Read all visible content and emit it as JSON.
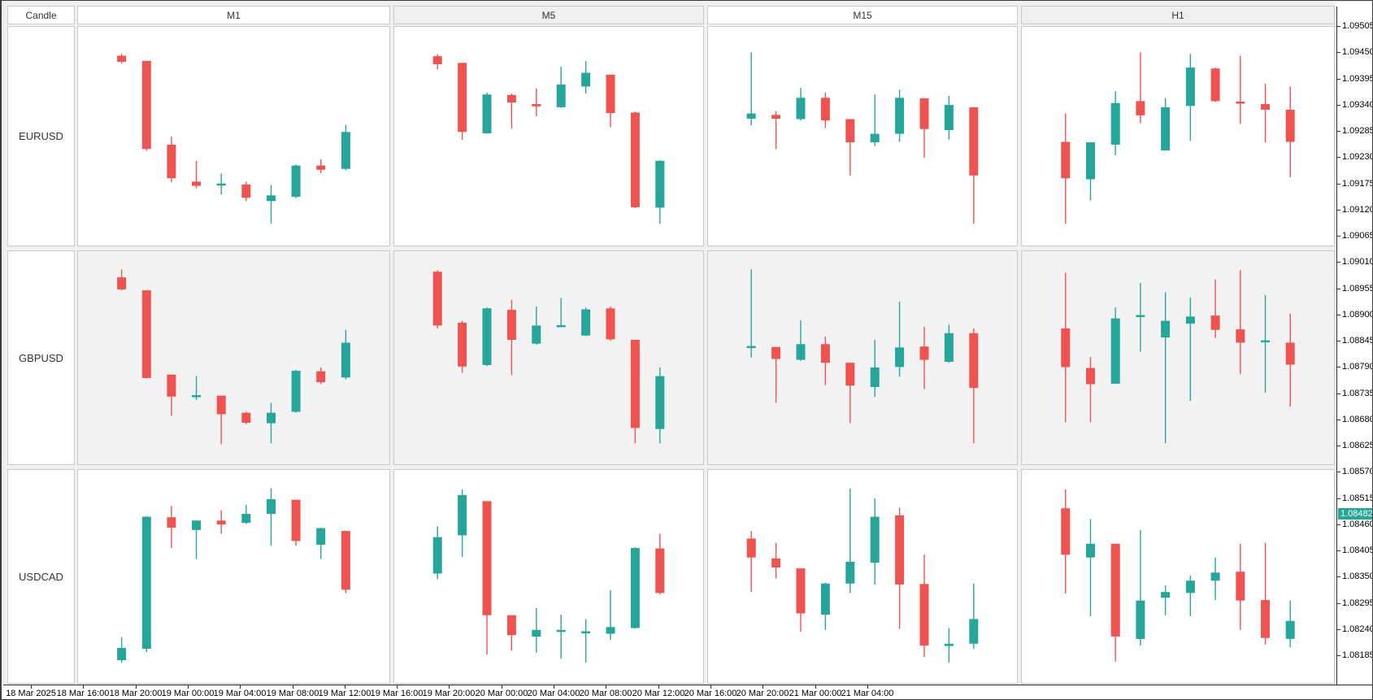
{
  "header": {
    "candle_label": "Candle",
    "timeframes": [
      "M1",
      "M5",
      "M15",
      "H1"
    ]
  },
  "rows": [
    "EURUSD",
    "GBPUSD",
    "USDCAD"
  ],
  "colors": {
    "up": "#26a69a",
    "down": "#ef5350",
    "row_alt_bg": "#f2f2f2",
    "panel_bg": "#ffffff",
    "border": "#c9c9c9",
    "axis": "#2b2b2b",
    "badge_bg": "#26a69a",
    "badge_text": "#ffffff"
  },
  "price_axis": {
    "current_price": "1.08482",
    "labels": [
      "1.09505",
      "1.09450",
      "1.09395",
      "1.09340",
      "1.09285",
      "1.09230",
      "1.09175",
      "1.09120",
      "1.09065",
      "1.09010",
      "1.08955",
      "1.08900",
      "1.08845",
      "1.08790",
      "1.08735",
      "1.08680",
      "1.08625",
      "1.08570",
      "1.08515",
      "1.08460",
      "1.08405",
      "1.08350",
      "1.08295",
      "1.08240",
      "1.08185"
    ]
  },
  "time_axis": {
    "labels": [
      "18 Mar 2025",
      "18 Mar 16:00",
      "18 Mar 20:00",
      "19 Mar 00:00",
      "19 Mar 04:00",
      "19 Mar 08:00",
      "19 Mar 12:00",
      "19 Mar 16:00",
      "19 Mar 20:00",
      "20 Mar 00:00",
      "20 Mar 04:00",
      "20 Mar 08:00",
      "20 Mar 12:00",
      "20 Mar 16:00",
      "20 Mar 20:00",
      "21 Mar 00:00",
      "21 Mar 04:00"
    ]
  },
  "chart_data": [
    {
      "type": "candlestick",
      "symbol": "EURUSD",
      "timeframe": "M1",
      "price_range": {
        "max": 1.09505,
        "min": 1.09043
      },
      "candles": [
        {
          "o": 1.09444,
          "h": 1.09448,
          "l": 1.09427,
          "c": 1.09431
        },
        {
          "o": 1.09433,
          "h": 1.09433,
          "l": 1.09243,
          "c": 1.09247
        },
        {
          "o": 1.09256,
          "h": 1.09273,
          "l": 1.09177,
          "c": 1.09185
        },
        {
          "o": 1.09178,
          "h": 1.09222,
          "l": 1.09164,
          "c": 1.09169
        },
        {
          "o": 1.09172,
          "h": 1.09195,
          "l": 1.09151,
          "c": 1.09174
        },
        {
          "o": 1.09172,
          "h": 1.09178,
          "l": 1.09137,
          "c": 1.09144
        },
        {
          "o": 1.09137,
          "h": 1.09171,
          "l": 1.09089,
          "c": 1.09149
        },
        {
          "o": 1.09146,
          "h": 1.09214,
          "l": 1.09143,
          "c": 1.09212
        },
        {
          "o": 1.09212,
          "h": 1.09225,
          "l": 1.09196,
          "c": 1.09203
        },
        {
          "o": 1.09205,
          "h": 1.09298,
          "l": 1.09202,
          "c": 1.09283
        }
      ]
    },
    {
      "type": "candlestick",
      "symbol": "EURUSD",
      "timeframe": "M5",
      "price_range": {
        "max": 1.09505,
        "min": 1.09043
      },
      "candles": [
        {
          "o": 1.09443,
          "h": 1.09447,
          "l": 1.09415,
          "c": 1.09426
        },
        {
          "o": 1.09429,
          "h": 1.09429,
          "l": 1.09266,
          "c": 1.09283
        },
        {
          "o": 1.0928,
          "h": 1.09366,
          "l": 1.09279,
          "c": 1.09362
        },
        {
          "o": 1.09361,
          "h": 1.09364,
          "l": 1.0929,
          "c": 1.09345
        },
        {
          "o": 1.09342,
          "h": 1.09375,
          "l": 1.09316,
          "c": 1.09337
        },
        {
          "o": 1.09335,
          "h": 1.09421,
          "l": 1.09334,
          "c": 1.09383
        },
        {
          "o": 1.09379,
          "h": 1.09433,
          "l": 1.09364,
          "c": 1.09408
        },
        {
          "o": 1.09404,
          "h": 1.09404,
          "l": 1.09293,
          "c": 1.09323
        },
        {
          "o": 1.09324,
          "h": 1.09326,
          "l": 1.09122,
          "c": 1.09124
        },
        {
          "o": 1.09123,
          "h": 1.09223,
          "l": 1.09089,
          "c": 1.09222
        }
      ]
    },
    {
      "type": "candlestick",
      "symbol": "EURUSD",
      "timeframe": "M15",
      "price_range": {
        "max": 1.09505,
        "min": 1.09043
      },
      "candles": [
        {
          "o": 1.09311,
          "h": 1.09451,
          "l": 1.09297,
          "c": 1.09322
        },
        {
          "o": 1.09319,
          "h": 1.09327,
          "l": 1.09247,
          "c": 1.09311
        },
        {
          "o": 1.0931,
          "h": 1.09376,
          "l": 1.09307,
          "c": 1.09355
        },
        {
          "o": 1.09355,
          "h": 1.09366,
          "l": 1.09291,
          "c": 1.09307
        },
        {
          "o": 1.0931,
          "h": 1.0931,
          "l": 1.09191,
          "c": 1.09261
        },
        {
          "o": 1.09261,
          "h": 1.09362,
          "l": 1.09253,
          "c": 1.09279
        },
        {
          "o": 1.09279,
          "h": 1.09372,
          "l": 1.09262,
          "c": 1.09355
        },
        {
          "o": 1.09354,
          "h": 1.09354,
          "l": 1.09228,
          "c": 1.09289
        },
        {
          "o": 1.09287,
          "h": 1.09359,
          "l": 1.09267,
          "c": 1.0934
        },
        {
          "o": 1.09335,
          "h": 1.09335,
          "l": 1.09089,
          "c": 1.09191
        }
      ]
    },
    {
      "type": "candlestick",
      "symbol": "EURUSD",
      "timeframe": "H1",
      "price_range": {
        "max": 1.09505,
        "min": 1.09043
      },
      "candles": [
        {
          "o": 1.09262,
          "h": 1.09322,
          "l": 1.09089,
          "c": 1.09185
        },
        {
          "o": 1.09183,
          "h": 1.09261,
          "l": 1.09138,
          "c": 1.09261
        },
        {
          "o": 1.09256,
          "h": 1.09369,
          "l": 1.09234,
          "c": 1.09344
        },
        {
          "o": 1.09348,
          "h": 1.09451,
          "l": 1.09302,
          "c": 1.09318
        },
        {
          "o": 1.09244,
          "h": 1.09354,
          "l": 1.09244,
          "c": 1.09335
        },
        {
          "o": 1.09338,
          "h": 1.09448,
          "l": 1.09264,
          "c": 1.09419
        },
        {
          "o": 1.09417,
          "h": 1.09419,
          "l": 1.09346,
          "c": 1.09348
        },
        {
          "o": 1.09347,
          "h": 1.09444,
          "l": 1.093,
          "c": 1.09343
        },
        {
          "o": 1.09342,
          "h": 1.09385,
          "l": 1.09261,
          "c": 1.0933
        },
        {
          "o": 1.0933,
          "h": 1.09379,
          "l": 1.09187,
          "c": 1.09262
        }
      ]
    },
    {
      "type": "candlestick",
      "symbol": "GBPUSD",
      "timeframe": "M1",
      "price_range": {
        "max": 1.09033,
        "min": 1.08586
      },
      "candles": [
        {
          "o": 1.08978,
          "h": 1.08995,
          "l": 1.08951,
          "c": 1.08953
        },
        {
          "o": 1.08951,
          "h": 1.08951,
          "l": 1.08766,
          "c": 1.08767
        },
        {
          "o": 1.08774,
          "h": 1.08774,
          "l": 1.08688,
          "c": 1.08728
        },
        {
          "o": 1.08728,
          "h": 1.08771,
          "l": 1.08721,
          "c": 1.08731
        },
        {
          "o": 1.0873,
          "h": 1.0873,
          "l": 1.08628,
          "c": 1.08691
        },
        {
          "o": 1.08694,
          "h": 1.08696,
          "l": 1.0867,
          "c": 1.08673
        },
        {
          "o": 1.08672,
          "h": 1.08715,
          "l": 1.0863,
          "c": 1.08694
        },
        {
          "o": 1.08696,
          "h": 1.08784,
          "l": 1.08694,
          "c": 1.08782
        },
        {
          "o": 1.08781,
          "h": 1.08789,
          "l": 1.08754,
          "c": 1.08758
        },
        {
          "o": 1.08768,
          "h": 1.08868,
          "l": 1.08764,
          "c": 1.08841
        }
      ]
    },
    {
      "type": "candlestick",
      "symbol": "GBPUSD",
      "timeframe": "M5",
      "price_range": {
        "max": 1.09033,
        "min": 1.08586
      },
      "candles": [
        {
          "o": 1.0899,
          "h": 1.08993,
          "l": 1.08871,
          "c": 1.08877
        },
        {
          "o": 1.08883,
          "h": 1.08887,
          "l": 1.08778,
          "c": 1.08791
        },
        {
          "o": 1.08794,
          "h": 1.08915,
          "l": 1.08792,
          "c": 1.08913
        },
        {
          "o": 1.0891,
          "h": 1.08931,
          "l": 1.08773,
          "c": 1.08847
        },
        {
          "o": 1.08839,
          "h": 1.08917,
          "l": 1.08837,
          "c": 1.08877
        },
        {
          "o": 1.08876,
          "h": 1.08935,
          "l": 1.08875,
          "c": 1.08878
        },
        {
          "o": 1.08856,
          "h": 1.08915,
          "l": 1.08855,
          "c": 1.08911
        },
        {
          "o": 1.08913,
          "h": 1.08917,
          "l": 1.08845,
          "c": 1.08848
        },
        {
          "o": 1.08847,
          "h": 1.08847,
          "l": 1.0863,
          "c": 1.08662
        },
        {
          "o": 1.0866,
          "h": 1.08789,
          "l": 1.0863,
          "c": 1.08771
        }
      ]
    },
    {
      "type": "candlestick",
      "symbol": "GBPUSD",
      "timeframe": "M15",
      "price_range": {
        "max": 1.09033,
        "min": 1.08586
      },
      "candles": [
        {
          "o": 1.08833,
          "h": 1.08995,
          "l": 1.0881,
          "c": 1.08834
        },
        {
          "o": 1.08832,
          "h": 1.08832,
          "l": 1.08715,
          "c": 1.08807
        },
        {
          "o": 1.08805,
          "h": 1.08888,
          "l": 1.08803,
          "c": 1.08838
        },
        {
          "o": 1.08838,
          "h": 1.08854,
          "l": 1.08752,
          "c": 1.08799
        },
        {
          "o": 1.08799,
          "h": 1.08799,
          "l": 1.08672,
          "c": 1.08751
        },
        {
          "o": 1.08748,
          "h": 1.08847,
          "l": 1.08727,
          "c": 1.08789
        },
        {
          "o": 1.0879,
          "h": 1.08927,
          "l": 1.0877,
          "c": 1.08831
        },
        {
          "o": 1.08833,
          "h": 1.08874,
          "l": 1.08744,
          "c": 1.08805
        },
        {
          "o": 1.08801,
          "h": 1.08879,
          "l": 1.08799,
          "c": 1.08861
        },
        {
          "o": 1.08861,
          "h": 1.08871,
          "l": 1.0863,
          "c": 1.08746
        }
      ]
    },
    {
      "type": "candlestick",
      "symbol": "GBPUSD",
      "timeframe": "H1",
      "price_range": {
        "max": 1.09033,
        "min": 1.08586
      },
      "candles": [
        {
          "o": 1.08871,
          "h": 1.08988,
          "l": 1.08674,
          "c": 1.0879
        },
        {
          "o": 1.08788,
          "h": 1.08811,
          "l": 1.08674,
          "c": 1.08754
        },
        {
          "o": 1.08755,
          "h": 1.08915,
          "l": 1.08754,
          "c": 1.08892
        },
        {
          "o": 1.08898,
          "h": 1.08967,
          "l": 1.08822,
          "c": 1.08899
        },
        {
          "o": 1.08852,
          "h": 1.08947,
          "l": 1.0863,
          "c": 1.08887
        },
        {
          "o": 1.08881,
          "h": 1.08936,
          "l": 1.08719,
          "c": 1.08896
        },
        {
          "o": 1.08898,
          "h": 1.08974,
          "l": 1.08851,
          "c": 1.08868
        },
        {
          "o": 1.08869,
          "h": 1.08993,
          "l": 1.08775,
          "c": 1.08841
        },
        {
          "o": 1.08843,
          "h": 1.08941,
          "l": 1.08736,
          "c": 1.08846
        },
        {
          "o": 1.08841,
          "h": 1.08902,
          "l": 1.08707,
          "c": 1.08795
        }
      ]
    },
    {
      "type": "candlestick",
      "symbol": "USDCAD",
      "timeframe": "M1",
      "price_range": {
        "max": 1.08575,
        "min": 1.08125
      },
      "candles": [
        {
          "o": 1.08173,
          "h": 1.08222,
          "l": 1.08168,
          "c": 1.08199
        },
        {
          "o": 1.08197,
          "h": 1.08477,
          "l": 1.0819,
          "c": 1.08476
        },
        {
          "o": 1.08475,
          "h": 1.08499,
          "l": 1.0841,
          "c": 1.08453
        },
        {
          "o": 1.08448,
          "h": 1.08469,
          "l": 1.08387,
          "c": 1.08468
        },
        {
          "o": 1.08468,
          "h": 1.0849,
          "l": 1.0844,
          "c": 1.0846
        },
        {
          "o": 1.08463,
          "h": 1.08501,
          "l": 1.08461,
          "c": 1.08482
        },
        {
          "o": 1.08482,
          "h": 1.08536,
          "l": 1.08415,
          "c": 1.08513
        },
        {
          "o": 1.08512,
          "h": 1.08512,
          "l": 1.08415,
          "c": 1.08425
        },
        {
          "o": 1.08417,
          "h": 1.08453,
          "l": 1.08387,
          "c": 1.08452
        },
        {
          "o": 1.08446,
          "h": 1.08446,
          "l": 1.08315,
          "c": 1.08322
        }
      ]
    },
    {
      "type": "candlestick",
      "symbol": "USDCAD",
      "timeframe": "M5",
      "price_range": {
        "max": 1.08575,
        "min": 1.08125
      },
      "candles": [
        {
          "o": 1.08356,
          "h": 1.08456,
          "l": 1.08344,
          "c": 1.08433
        },
        {
          "o": 1.08437,
          "h": 1.08534,
          "l": 1.08391,
          "c": 1.08522
        },
        {
          "o": 1.08509,
          "h": 1.08509,
          "l": 1.08185,
          "c": 1.08268
        },
        {
          "o": 1.08268,
          "h": 1.08268,
          "l": 1.08193,
          "c": 1.08226
        },
        {
          "o": 1.08223,
          "h": 1.08283,
          "l": 1.08189,
          "c": 1.08237
        },
        {
          "o": 1.08236,
          "h": 1.08269,
          "l": 1.08176,
          "c": 1.08237
        },
        {
          "o": 1.08233,
          "h": 1.0826,
          "l": 1.08168,
          "c": 1.08234
        },
        {
          "o": 1.08229,
          "h": 1.08321,
          "l": 1.08216,
          "c": 1.08243
        },
        {
          "o": 1.08241,
          "h": 1.08412,
          "l": 1.0824,
          "c": 1.0841
        },
        {
          "o": 1.08409,
          "h": 1.0844,
          "l": 1.08312,
          "c": 1.08315
        }
      ]
    },
    {
      "type": "candlestick",
      "symbol": "USDCAD",
      "timeframe": "M15",
      "price_range": {
        "max": 1.08575,
        "min": 1.08125
      },
      "candles": [
        {
          "o": 1.0843,
          "h": 1.08446,
          "l": 1.08317,
          "c": 1.0839
        },
        {
          "o": 1.08388,
          "h": 1.08421,
          "l": 1.08346,
          "c": 1.08369
        },
        {
          "o": 1.08367,
          "h": 1.08367,
          "l": 1.08233,
          "c": 1.08272
        },
        {
          "o": 1.08269,
          "h": 1.08337,
          "l": 1.08237,
          "c": 1.08335
        },
        {
          "o": 1.08335,
          "h": 1.08536,
          "l": 1.08315,
          "c": 1.08381
        },
        {
          "o": 1.08379,
          "h": 1.08515,
          "l": 1.08333,
          "c": 1.08476
        },
        {
          "o": 1.08479,
          "h": 1.08495,
          "l": 1.08239,
          "c": 1.08333
        },
        {
          "o": 1.08334,
          "h": 1.08396,
          "l": 1.0818,
          "c": 1.08204
        },
        {
          "o": 1.08203,
          "h": 1.08241,
          "l": 1.08168,
          "c": 1.08208
        },
        {
          "o": 1.08208,
          "h": 1.08335,
          "l": 1.08197,
          "c": 1.0826
        }
      ]
    },
    {
      "type": "candlestick",
      "symbol": "USDCAD",
      "timeframe": "H1",
      "price_range": {
        "max": 1.08575,
        "min": 1.08125
      },
      "candles": [
        {
          "o": 1.08494,
          "h": 1.08534,
          "l": 1.08314,
          "c": 1.08396
        },
        {
          "o": 1.0839,
          "h": 1.08471,
          "l": 1.08266,
          "c": 1.08419
        },
        {
          "o": 1.08419,
          "h": 1.08419,
          "l": 1.0817,
          "c": 1.08223
        },
        {
          "o": 1.08218,
          "h": 1.08448,
          "l": 1.08204,
          "c": 1.08299
        },
        {
          "o": 1.08305,
          "h": 1.08331,
          "l": 1.08268,
          "c": 1.08317
        },
        {
          "o": 1.08315,
          "h": 1.08352,
          "l": 1.08266,
          "c": 1.08341
        },
        {
          "o": 1.08341,
          "h": 1.0839,
          "l": 1.083,
          "c": 1.08358
        },
        {
          "o": 1.0836,
          "h": 1.08419,
          "l": 1.08237,
          "c": 1.08299
        },
        {
          "o": 1.083,
          "h": 1.08421,
          "l": 1.08206,
          "c": 1.0822
        },
        {
          "o": 1.08218,
          "h": 1.08299,
          "l": 1.082,
          "c": 1.08256
        }
      ]
    }
  ]
}
